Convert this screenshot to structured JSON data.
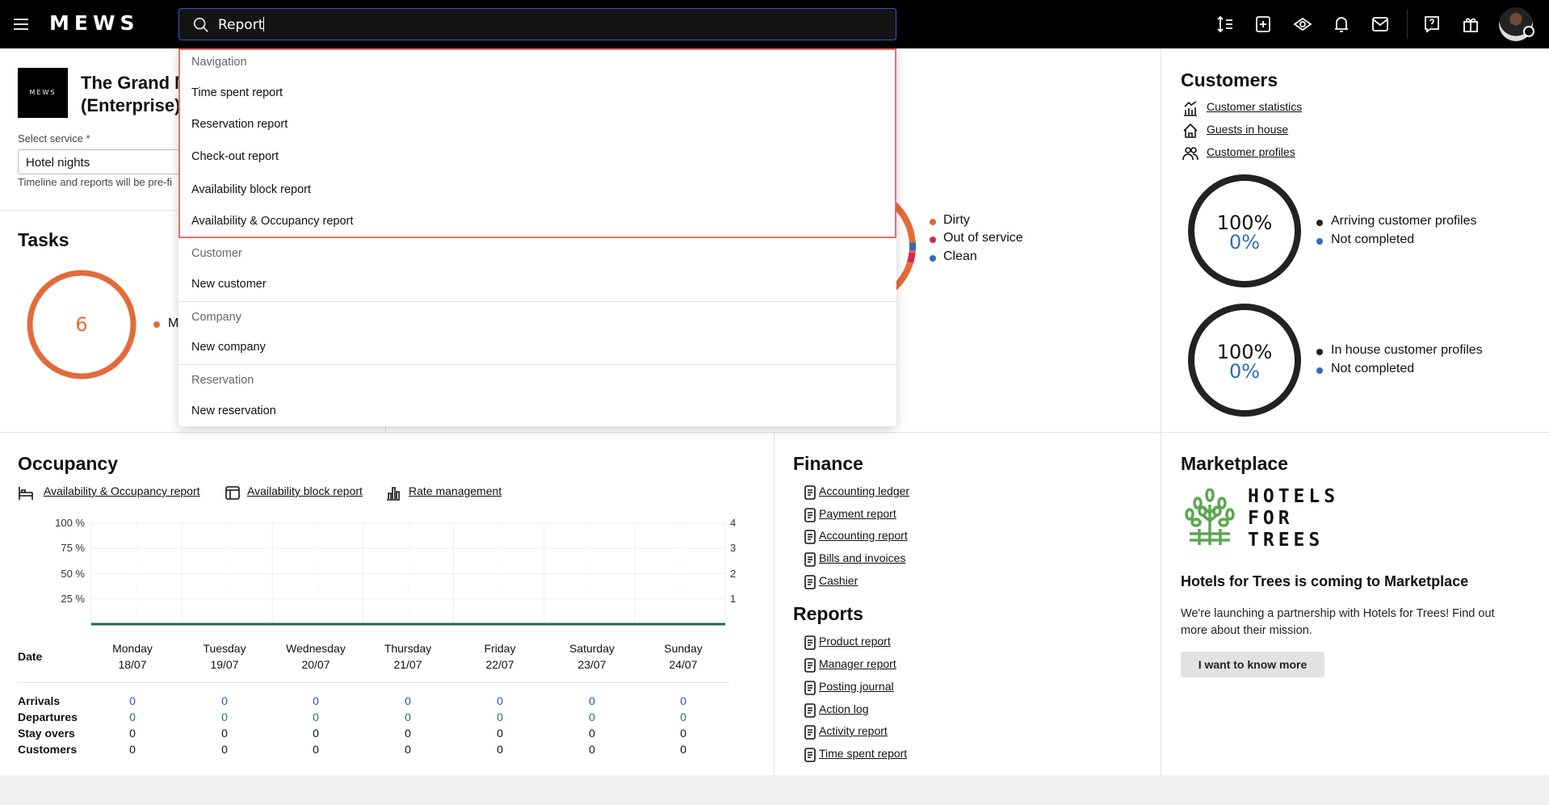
{
  "topbar": {
    "brand": "MEWS",
    "search_value": "Report",
    "icons": [
      "menu-icon",
      "sort-icon",
      "add-icon",
      "eye-icon",
      "bell-icon",
      "mail-icon",
      "help-icon",
      "gift-icon",
      "avatar"
    ]
  },
  "hotel": {
    "logo_text": "MEWS",
    "name_line1": "The Grand M",
    "name_line2": "(Enterprise)",
    "select_label": "Select service *",
    "select_value": "Hotel nights",
    "helper": "Timeline and reports will be pre-fi"
  },
  "tasks": {
    "title": "Tasks",
    "count": "6",
    "legend": "M",
    "color": "#e36b3a"
  },
  "housekeeping": {
    "legend": [
      {
        "label": "Dirty",
        "color": "#e36b3a"
      },
      {
        "label": "Out of service",
        "color": "#d6294a"
      },
      {
        "label": "Clean",
        "color": "#2f6db5"
      }
    ]
  },
  "customers": {
    "title": "Customers",
    "links": [
      {
        "label": "Customer statistics",
        "icon": "statistics-icon"
      },
      {
        "label": "Guests in house",
        "icon": "house-icon"
      },
      {
        "label": "Customer profiles",
        "icon": "people-icon"
      }
    ],
    "gauges": [
      {
        "total": "100%",
        "completed": "0%",
        "legend": [
          "Arriving customer profiles",
          "Not completed"
        ]
      },
      {
        "total": "100%",
        "completed": "0%",
        "legend": [
          "In house customer profiles",
          "Not completed"
        ]
      }
    ]
  },
  "occupancy": {
    "title": "Occupancy",
    "links": [
      {
        "label": "Availability & Occupancy report",
        "icon": "bed-icon"
      },
      {
        "label": "Availability block report",
        "icon": "table-icon"
      },
      {
        "label": "Rate management",
        "icon": "bar-chart-icon"
      }
    ],
    "chart_data": {
      "type": "line",
      "left_ticks": [
        "100 %",
        "75 %",
        "50 %",
        "25 %"
      ],
      "right_ticks": [
        "4",
        "3",
        "2",
        "1"
      ],
      "ylim_left": [
        0,
        100
      ],
      "ylim_right": [
        0,
        4
      ],
      "x": [
        "Monday 18/07",
        "Tuesday 19/07",
        "Wednesday 20/07",
        "Thursday 21/07",
        "Friday 22/07",
        "Saturday 23/07",
        "Sunday 24/07"
      ],
      "values": [
        0,
        0,
        0,
        0,
        0,
        0,
        0
      ],
      "line_color": "#1e6b4f",
      "grid": true
    },
    "table": {
      "date_label": "Date",
      "days": [
        {
          "day": "Monday",
          "date": "18/07"
        },
        {
          "day": "Tuesday",
          "date": "19/07"
        },
        {
          "day": "Wednesday",
          "date": "20/07"
        },
        {
          "day": "Thursday",
          "date": "21/07"
        },
        {
          "day": "Friday",
          "date": "22/07"
        },
        {
          "day": "Saturday",
          "date": "23/07"
        },
        {
          "day": "Sunday",
          "date": "24/07"
        }
      ],
      "rows": [
        {
          "label": "Arrivals",
          "values": [
            "0",
            "0",
            "0",
            "0",
            "0",
            "0",
            "0"
          ],
          "color": "#2b4fd0"
        },
        {
          "label": "Departures",
          "values": [
            "0",
            "0",
            "0",
            "0",
            "0",
            "0",
            "0"
          ],
          "color": "#1e7a50"
        },
        {
          "label": "Stay overs",
          "values": [
            "0",
            "0",
            "0",
            "0",
            "0",
            "0",
            "0"
          ],
          "color": "#111"
        },
        {
          "label": "Customers",
          "values": [
            "0",
            "0",
            "0",
            "0",
            "0",
            "0",
            "0"
          ],
          "color": "#111"
        }
      ]
    }
  },
  "finance": {
    "title": "Finance",
    "links": [
      {
        "label": "Accounting ledger",
        "icon": "ledger-icon"
      },
      {
        "label": "Payment report",
        "icon": "payment-icon"
      },
      {
        "label": "Accounting report",
        "icon": "accounting-icon"
      },
      {
        "label": "Bills and invoices",
        "icon": "bill-icon"
      },
      {
        "label": "Cashier",
        "icon": "cashier-icon"
      }
    ]
  },
  "reports": {
    "title": "Reports",
    "links": [
      {
        "label": "Product report",
        "icon": "product-icon"
      },
      {
        "label": "Manager report",
        "icon": "clipboard-icon"
      },
      {
        "label": "Posting journal",
        "icon": "journal-icon"
      },
      {
        "label": "Action log",
        "icon": "log-icon"
      },
      {
        "label": "Activity report",
        "icon": "activity-icon"
      },
      {
        "label": "Time spent report",
        "icon": "moon-icon"
      }
    ]
  },
  "marketplace": {
    "title": "Marketplace",
    "logo_lines": [
      "HOTELS",
      "FOR",
      "TREES"
    ],
    "heading": "Hotels for Trees is coming to Marketplace",
    "body": "We're launching a partnership with Hotels for Trees! Find out more about their mission.",
    "button": "I want to know more"
  },
  "dropdown": {
    "sections": [
      {
        "header": "Navigation",
        "items": [
          "Time spent report",
          "Reservation report",
          "Check-out report",
          "Availability block report",
          "Availability & Occupancy report"
        ]
      },
      {
        "header": "Customer",
        "items": [
          "New customer"
        ]
      },
      {
        "header": "Company",
        "items": [
          "New company"
        ]
      },
      {
        "header": "Reservation",
        "items": [
          "New reservation"
        ]
      }
    ]
  }
}
